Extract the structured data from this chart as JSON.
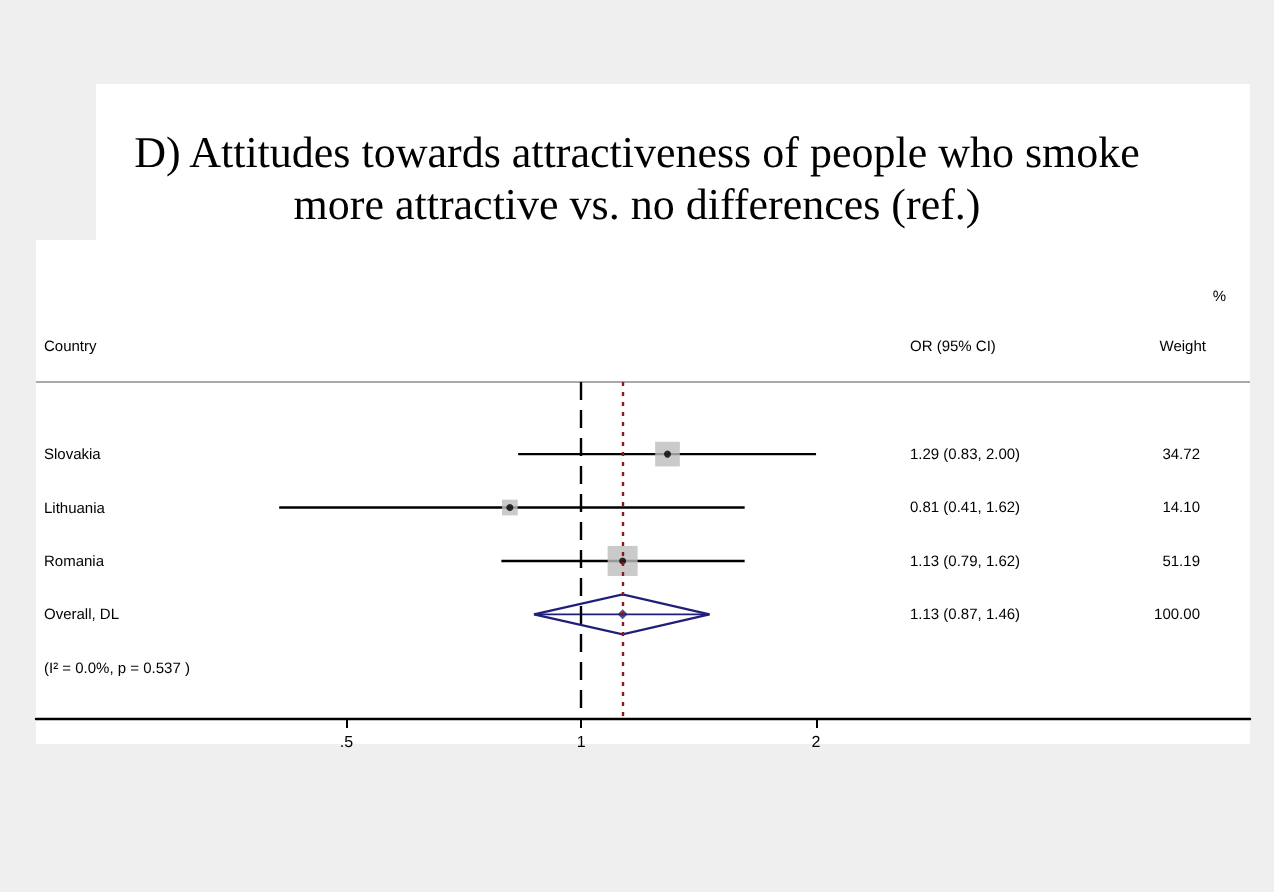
{
  "chart_data": {
    "type": "scatter",
    "orientation": "horizontal",
    "title": "D) Attitudes towards attractiveness of people who smoke\nmore attractive vs. no differences (ref.)",
    "categories": [
      "Slovakia",
      "Lithuania",
      "Romania",
      "Overall, DL"
    ],
    "series": [
      {
        "marker": "square",
        "color": "#bdbdbd",
        "values": [
          1.29,
          0.81,
          1.13,
          null
        ],
        "sizes": [
          0.678,
          0.275,
          1,
          null
        ]
      },
      {
        "marker": "circle",
        "color": "#000000",
        "values": [
          1.29,
          0.81,
          1.13,
          null
        ],
        "errors": [
          [
            0.83,
            2.0
          ],
          [
            0.41,
            1.62
          ],
          [
            0.79,
            1.62
          ],
          null
        ]
      },
      {
        "marker": "diamond",
        "color": "#1f1f7a",
        "values": [
          null,
          null,
          null,
          1.13
        ],
        "errors": [
          null,
          null,
          null,
          [
            0.87,
            1.46
          ]
        ]
      }
    ],
    "log": "x",
    "xlim": [
      0.2,
      7.2
    ],
    "xticks": [
      {
        "value": 0.5,
        "label": ".5"
      },
      1,
      2
    ],
    "ref_lines": [
      {
        "axis": "x",
        "value": 1,
        "label": null,
        "color": "#000000",
        "line_style": "dashed"
      },
      {
        "axis": "x",
        "value": 1.13,
        "label": null,
        "color": "#8b1a1a",
        "line_style": "dotted"
      }
    ],
    "annotations": [
      "Country",
      "OR (95% CI)",
      "%",
      "Weight",
      "(I² = 0.0%, p = 0.537 )",
      "1.29 (0.83, 2.00)",
      "0.81 (0.41, 1.62)",
      "1.13 (0.79, 1.62)",
      "1.13 (0.87, 1.46)",
      "34.72",
      "14.10",
      "51.19",
      "100.00"
    ]
  }
}
